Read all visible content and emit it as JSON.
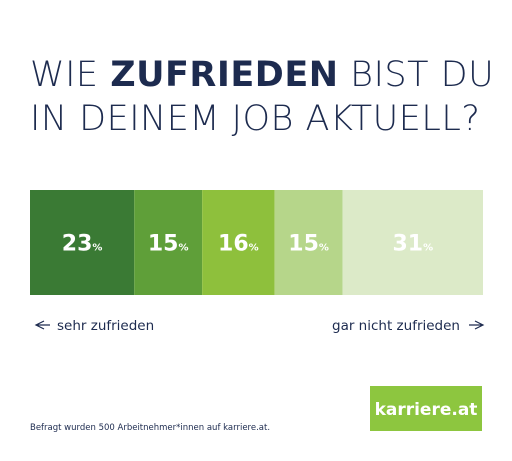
{
  "chart_data": {
    "type": "stacked_bar",
    "title": {
      "line1": [
        "WIE",
        "ZUFRIEDEN",
        "BIST DU"
      ],
      "line2": "IN DEINEM JOB AKTUELL?"
    },
    "series": [
      {
        "color": "#3a7a34",
        "values": [
          23
        ],
        "value_labels": [
          "23%"
        ]
      },
      {
        "color": "#5f9f39",
        "values": [
          15
        ],
        "value_labels": [
          "15%"
        ]
      },
      {
        "color": "#8ec03c",
        "values": [
          16
        ],
        "value_labels": [
          "16%"
        ]
      },
      {
        "color": "#b6d68a",
        "values": [
          15
        ],
        "value_labels": [
          "15%"
        ]
      },
      {
        "color": "#dceac8",
        "values": [
          31
        ],
        "value_labels": [
          "31%"
        ]
      }
    ],
    "scale_left": "sehr zufrieden",
    "scale_right": "gar nicht zufrieden",
    "note": "Befragt wurden 500 Arbeitnehmer*innen auf karriere.at.",
    "logo": "karriere.at"
  }
}
